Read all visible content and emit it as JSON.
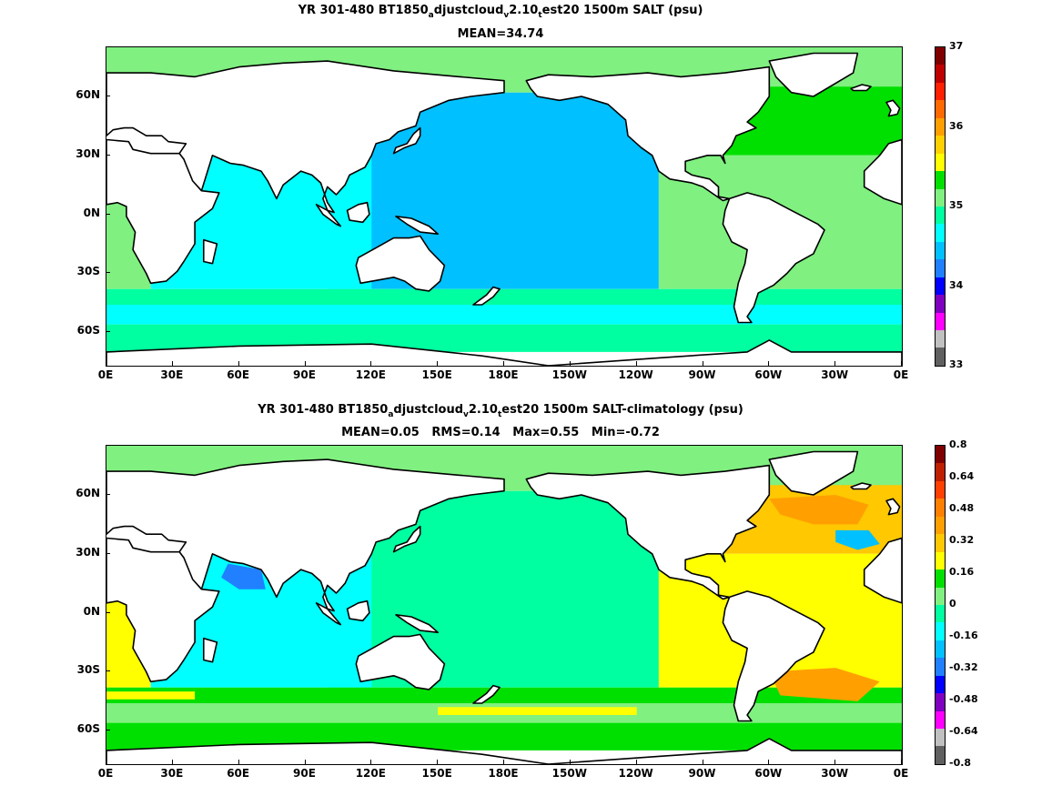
{
  "panels": [
    {
      "title_line1": {
        "pre": "YR 301-480 BT1850",
        "sub_a": "a",
        "mid1": "djustcloud",
        "sub_v": "v",
        "mid2": "2.10",
        "sub_t": "t",
        "post": "est20 1500m SALT (psu)"
      },
      "title_line2": "MEAN=34.74",
      "colorbar": {
        "ticks": [
          "37",
          "36",
          "35",
          "34",
          "33"
        ],
        "colors": [
          "#7f0000",
          "#bf0000",
          "#ff2000",
          "#ff6a00",
          "#ffa000",
          "#ffd000",
          "#ffff00",
          "#00e000",
          "#80f080",
          "#00ffa0",
          "#00ffff",
          "#00c0ff",
          "#2080ff",
          "#0000ff",
          "#8000c0",
          "#ff00ff",
          "#c0c0c0",
          "#606060"
        ]
      },
      "regions": {
        "atlantic_north": "#00e000",
        "atlantic_mid": "#80f080",
        "pacific": "#00c0ff",
        "indian": "#00ffff",
        "southern_band": "#00ffa0",
        "southern_outer": "#00ffff",
        "arctic": "#80f080"
      }
    },
    {
      "title_line1": {
        "pre": "YR 301-480 BT1850",
        "sub_a": "a",
        "mid1": "djustcloud",
        "sub_v": "v",
        "mid2": "2.10",
        "sub_t": "t",
        "post": "est20 1500m SALT-climatology (psu)"
      },
      "title_line2": "MEAN=0.05   RMS=0.14   Max=0.55   Min=-0.72",
      "colorbar": {
        "ticks": [
          "0.8",
          "0.64",
          "0.48",
          "0.32",
          "0.16",
          "0",
          "-0.16",
          "-0.32",
          "-0.48",
          "-0.64",
          "-0.8"
        ],
        "colors": [
          "#7f0000",
          "#bf2000",
          "#ff4000",
          "#ff8000",
          "#ffa000",
          "#ffc800",
          "#ffff00",
          "#00e000",
          "#80f080",
          "#00ffa0",
          "#00ffff",
          "#00c0ff",
          "#2080ff",
          "#0000ff",
          "#8000c0",
          "#ff00ff",
          "#c0c0c0",
          "#606060"
        ]
      },
      "regions": {
        "atlantic_north": "#ffc800",
        "atlantic_mid": "#ffff00",
        "pacific": "#00ffa0",
        "indian": "#00ffff",
        "southern_band": "#00e000",
        "southern_outer": "#80f080",
        "arctic": "#80f080"
      }
    }
  ],
  "y_ticks": [
    "60N",
    "30N",
    "0N",
    "30S",
    "60S"
  ],
  "x_ticks": [
    "0E",
    "30E",
    "60E",
    "90E",
    "120E",
    "150E",
    "180E",
    "150W",
    "120W",
    "90W",
    "60W",
    "30W",
    "0E"
  ]
}
